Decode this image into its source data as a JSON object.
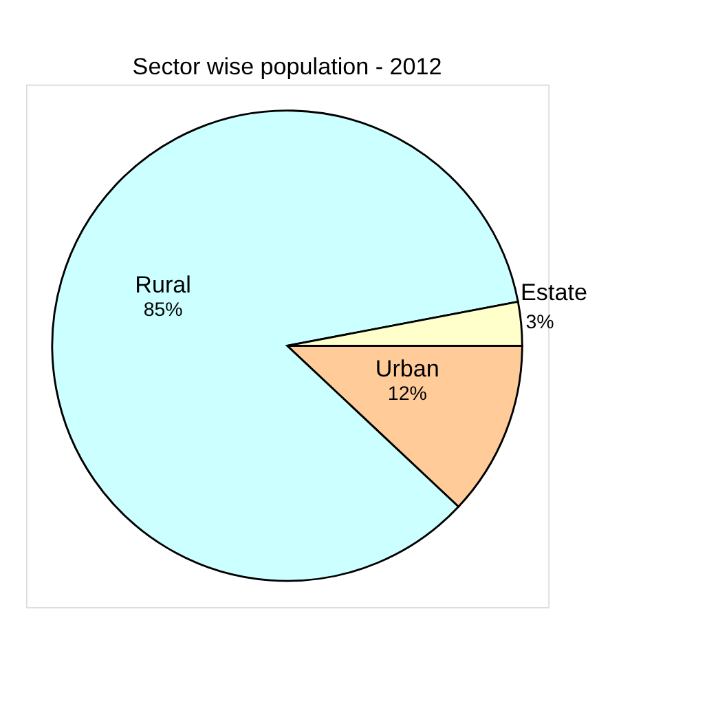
{
  "chart_data": {
    "type": "pie",
    "title": "Sector wise population  -  2012",
    "categories": [
      "Urban",
      "Rural",
      "Estate"
    ],
    "values": [
      12,
      85,
      3
    ],
    "colors": [
      "#ffcc99",
      "#ccffff",
      "#ffffcc"
    ],
    "value_labels": [
      "12%",
      "85%",
      "3%"
    ],
    "legend": false
  }
}
